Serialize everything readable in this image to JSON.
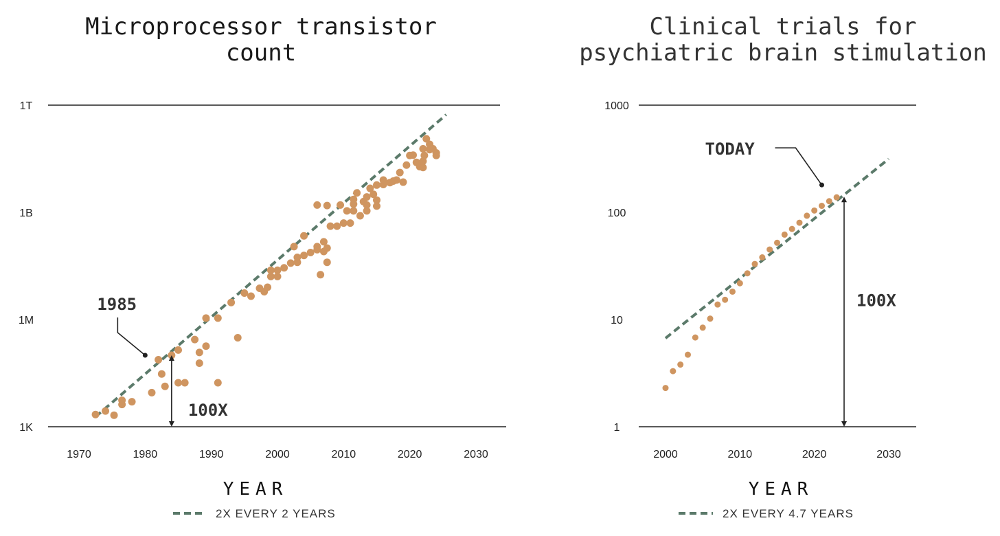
{
  "colors": {
    "points": "#cf9560",
    "trend": "#5b7a6a",
    "axis": "#222222",
    "text": "#333333"
  },
  "chart_data": [
    {
      "type": "scatter",
      "title": "Microprocessor transistor count",
      "xlabel": "YEAR",
      "ylabel": "",
      "yscale": "log",
      "xlim": [
        1966,
        2034
      ],
      "ylim": [
        1000,
        1000000000000
      ],
      "x_ticks": [
        1970,
        1980,
        1990,
        2000,
        2010,
        2020,
        2030
      ],
      "y_ticks": [
        {
          "value": 1000,
          "label": "1K"
        },
        {
          "value": 1000000,
          "label": "1M"
        },
        {
          "value": 1000000000,
          "label": "1B"
        },
        {
          "value": 1000000000000,
          "label": "1T"
        }
      ],
      "grid": false,
      "legend": "bottom",
      "series": [
        {
          "name": "transistor count",
          "kind": "points",
          "points": [
            [
              1972.5,
              2200
            ],
            [
              1974,
              2750
            ],
            [
              1975.3,
              2100
            ],
            [
              1976.5,
              4200
            ],
            [
              1976.5,
              5500
            ],
            [
              1978,
              5000
            ],
            [
              1981,
              9000
            ],
            [
              1982,
              75000
            ],
            [
              1982.5,
              30000
            ],
            [
              1983,
              13500
            ],
            [
              1984,
              100000
            ],
            [
              1985,
              140000
            ],
            [
              1985,
              17000
            ],
            [
              1986,
              17000
            ],
            [
              1987.5,
              275000
            ],
            [
              1988.2,
              60000
            ],
            [
              1988.2,
              120000
            ],
            [
              1989.2,
              180000
            ],
            [
              1989.2,
              1100000
            ],
            [
              1991,
              1100000
            ],
            [
              1991,
              17000
            ],
            [
              1993,
              3000000
            ],
            [
              1994,
              310000
            ],
            [
              1995,
              5500000
            ],
            [
              1996,
              4500000
            ],
            [
              1997.3,
              7500000
            ],
            [
              1998,
              6000000
            ],
            [
              1998.5,
              8000000
            ],
            [
              1999,
              16000000
            ],
            [
              1999,
              24000000
            ],
            [
              2000,
              16000000
            ],
            [
              2000,
              24000000
            ],
            [
              2001,
              28000000
            ],
            [
              2002,
              38000000
            ],
            [
              2002.5,
              110000000
            ],
            [
              2003,
              40000000
            ],
            [
              2003,
              55000000
            ],
            [
              2004,
              62000000
            ],
            [
              2004,
              220000000
            ],
            [
              2005,
              75000000
            ],
            [
              2006,
              90000000
            ],
            [
              2006,
              110000000
            ],
            [
              2006,
              1600000000
            ],
            [
              2006.5,
              18000000
            ],
            [
              2007,
              80000000
            ],
            [
              2007,
              150000000
            ],
            [
              2007.5,
              100000000
            ],
            [
              2007.5,
              40000000
            ],
            [
              2007.5,
              1550000000
            ],
            [
              2008,
              410000000
            ],
            [
              2009,
              410000000
            ],
            [
              2009.5,
              1600000000
            ],
            [
              2010,
              500000000
            ],
            [
              2010.5,
              1100000000
            ],
            [
              2011,
              500000000
            ],
            [
              2011.5,
              2300000000
            ],
            [
              2011.5,
              1100000000
            ],
            [
              2011.5,
              1700000000
            ],
            [
              2012,
              3500000000
            ],
            [
              2012.5,
              800000000
            ],
            [
              2013,
              2000000000
            ],
            [
              2013.5,
              1600000000
            ],
            [
              2013.5,
              2700000000
            ],
            [
              2013.5,
              1100000000
            ],
            [
              2014,
              4700000000
            ],
            [
              2014.5,
              3200000000
            ],
            [
              2015,
              5800000000
            ],
            [
              2015,
              2200000000
            ],
            [
              2015,
              1500000000
            ],
            [
              2016,
              6000000000
            ],
            [
              2016,
              8000000000
            ],
            [
              2017,
              6800000000
            ],
            [
              2017.5,
              7500000000
            ],
            [
              2018,
              8000000000
            ],
            [
              2018.5,
              13000000000
            ],
            [
              2019,
              7000000000
            ],
            [
              2019.5,
              21000000000
            ],
            [
              2020,
              39000000000
            ],
            [
              2020.5,
              40000000000
            ],
            [
              2021,
              25000000000
            ],
            [
              2021.5,
              19000000000
            ],
            [
              2022,
              27000000000
            ],
            [
              2022,
              18000000000
            ],
            [
              2022,
              60000000000
            ],
            [
              2022.2,
              39000000000
            ],
            [
              2022.5,
              114000000000
            ],
            [
              2023,
              80000000000
            ],
            [
              2023,
              57000000000
            ],
            [
              2023.5,
              60000000000
            ],
            [
              2024,
              46000000000
            ],
            [
              2024,
              39000000000
            ]
          ]
        },
        {
          "name": "2X EVERY 2 YEARS",
          "kind": "trend",
          "style": "dashed",
          "points": [
            [
              1972.5,
              1900
            ],
            [
              2025.5,
              540000000000
            ]
          ]
        }
      ],
      "annotations": [
        {
          "label": "1985",
          "kind": "callout",
          "target": [
            1980,
            100000
          ]
        },
        {
          "label": "100X",
          "kind": "span",
          "x": 1984,
          "from": 1000,
          "to": 100000
        }
      ],
      "legend_label": "2X EVERY 2 YEARS"
    },
    {
      "type": "scatter",
      "title": "Clinical trials for psychiatric brain stimulation",
      "xlabel": "YEAR",
      "ylabel": "",
      "yscale": "log",
      "xlim": [
        1997,
        2033
      ],
      "ylim": [
        1,
        1000
      ],
      "x_ticks": [
        2000,
        2010,
        2020,
        2030
      ],
      "y_ticks": [
        {
          "value": 1,
          "label": "1"
        },
        {
          "value": 10,
          "label": "10"
        },
        {
          "value": 100,
          "label": "100"
        },
        {
          "value": 1000,
          "label": "1000"
        }
      ],
      "grid": false,
      "legend": "bottom",
      "series": [
        {
          "name": "trials",
          "kind": "points",
          "points": [
            [
              2000,
              2.3
            ],
            [
              2001,
              3.3
            ],
            [
              2002,
              3.8
            ],
            [
              2003,
              4.7
            ],
            [
              2004,
              6.8
            ],
            [
              2005,
              8.4
            ],
            [
              2006,
              10.2
            ],
            [
              2007,
              13.8
            ],
            [
              2008,
              15.3
            ],
            [
              2009,
              18.2
            ],
            [
              2010,
              21.8
            ],
            [
              2011,
              27
            ],
            [
              2012,
              33
            ],
            [
              2013,
              38
            ],
            [
              2014,
              45
            ],
            [
              2015,
              52
            ],
            [
              2016,
              62
            ],
            [
              2017,
              70
            ],
            [
              2018,
              80
            ],
            [
              2019,
              93
            ],
            [
              2020,
              104
            ],
            [
              2021,
              115
            ],
            [
              2022,
              127
            ],
            [
              2023,
              138
            ]
          ]
        },
        {
          "name": "2X EVERY 4.7 YEARS",
          "kind": "trend",
          "style": "dashed",
          "points": [
            [
              2000,
              6.7
            ],
            [
              2030,
              315
            ]
          ]
        }
      ],
      "annotations": [
        {
          "label": "TODAY",
          "kind": "callout",
          "target": [
            2021,
            180
          ]
        },
        {
          "label": "100X",
          "kind": "span",
          "x": 2024,
          "from": 1,
          "to": 140
        }
      ],
      "legend_label": "2X EVERY 4.7 YEARS"
    }
  ]
}
